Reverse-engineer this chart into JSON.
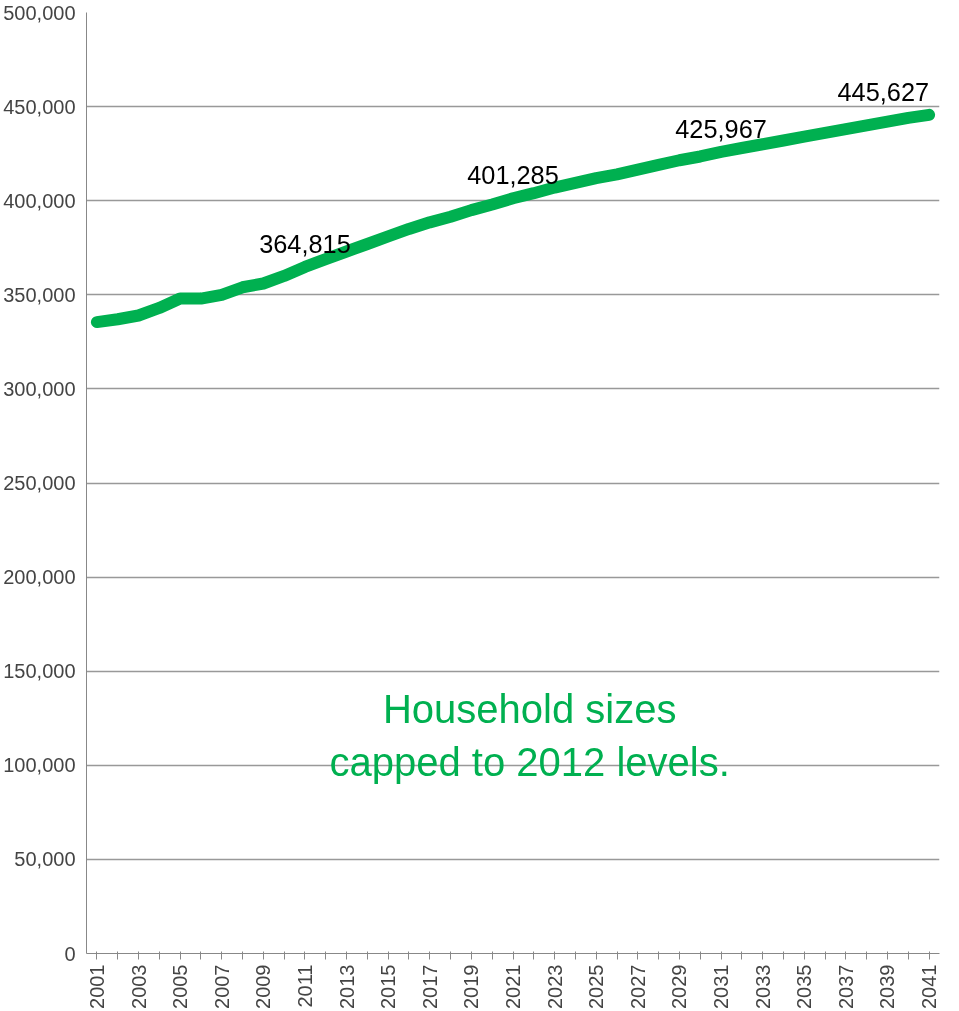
{
  "chart_data": {
    "type": "line",
    "categories": [
      "2001",
      null,
      "2003",
      null,
      "2005",
      null,
      "2007",
      null,
      "2009",
      null,
      "2011",
      null,
      "2013",
      null,
      "2015",
      null,
      "2017",
      null,
      "2019",
      null,
      "2021",
      null,
      "2023",
      null,
      "2025",
      null,
      "2027",
      null,
      "2029",
      null,
      "2031",
      null,
      "2033",
      null,
      "2035",
      null,
      "2037",
      null,
      "2039",
      null,
      "2041"
    ],
    "series": [
      {
        "color": "#00b050",
        "values": [
          335500,
          337000,
          339000,
          343000,
          348000,
          348000,
          350000,
          354000,
          356000,
          360000,
          364815,
          369000,
          373000,
          377000,
          381000,
          385000,
          388500,
          391500,
          395000,
          398000,
          401285,
          404000,
          407000,
          409500,
          412000,
          414000,
          416500,
          419000,
          421500,
          423500,
          425967,
          428000,
          430000,
          432000,
          434000,
          436000,
          438000,
          440000,
          442000,
          444000,
          445627
        ],
        "value_labels": [
          null,
          null,
          null,
          null,
          null,
          null,
          null,
          null,
          null,
          null,
          "364,815",
          null,
          null,
          null,
          null,
          null,
          null,
          null,
          null,
          null,
          "401,285",
          null,
          null,
          null,
          null,
          null,
          null,
          null,
          null,
          null,
          "425,967",
          null,
          null,
          null,
          null,
          null,
          null,
          null,
          null,
          null,
          "445,627"
        ]
      }
    ],
    "ylim": [
      0,
      500000
    ],
    "yticks": [
      {
        "value": 0,
        "label": "0"
      },
      {
        "value": 50000,
        "label": "50,000"
      },
      {
        "value": 100000,
        "label": "100,000"
      },
      {
        "value": 150000,
        "label": "150,000"
      },
      {
        "value": 200000,
        "label": "200,000"
      },
      {
        "value": 250000,
        "label": "250,000"
      },
      {
        "value": 300000,
        "label": "300,000"
      },
      {
        "value": 350000,
        "label": "350,000"
      },
      {
        "value": 400000,
        "label": "400,000"
      },
      {
        "value": 450000,
        "label": "450,000"
      },
      {
        "value": 500000,
        "label": "500,000"
      }
    ],
    "grid": "y",
    "marker": "none",
    "line_style": "solid",
    "annotations": [
      "Household sizes\ncapped to 2012 levels."
    ]
  }
}
